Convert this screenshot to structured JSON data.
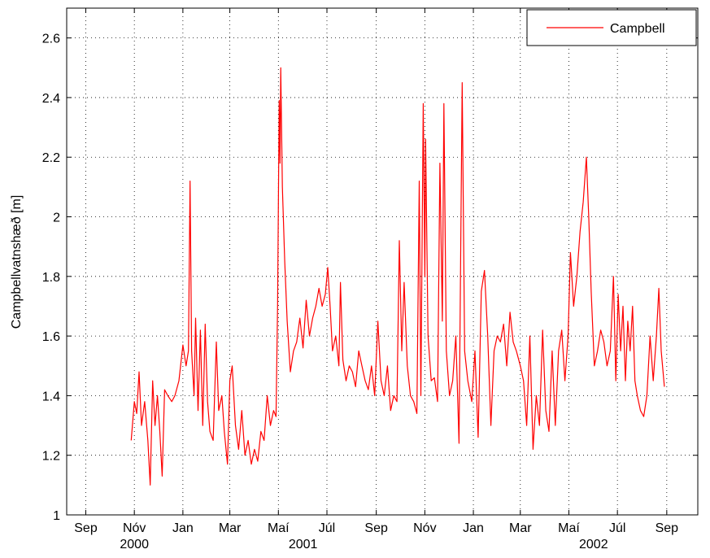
{
  "chart_data": {
    "type": "line",
    "ylabel": "Campbellvatnshæð [m]",
    "series": [
      {
        "name": "Campbell",
        "color": "#ff0000",
        "x": [
          "2000-10-28",
          "2000-11-01",
          "2000-11-04",
          "2000-11-07",
          "2000-11-10",
          "2000-11-14",
          "2000-11-18",
          "2000-11-21",
          "2000-11-24",
          "2000-11-27",
          "2000-11-30",
          "2000-12-03",
          "2000-12-06",
          "2000-12-09",
          "2000-12-13",
          "2000-12-18",
          "2000-12-22",
          "2000-12-27",
          "2001-01-01",
          "2001-01-05",
          "2001-01-08",
          "2001-01-10",
          "2001-01-12",
          "2001-01-15",
          "2001-01-17",
          "2001-01-20",
          "2001-01-23",
          "2001-01-26",
          "2001-01-29",
          "2001-02-01",
          "2001-02-04",
          "2001-02-08",
          "2001-02-12",
          "2001-02-15",
          "2001-02-19",
          "2001-02-22",
          "2001-02-26",
          "2001-03-01",
          "2001-03-04",
          "2001-03-08",
          "2001-03-12",
          "2001-03-16",
          "2001-03-20",
          "2001-03-24",
          "2001-03-28",
          "2001-04-01",
          "2001-04-05",
          "2001-04-09",
          "2001-04-13",
          "2001-04-17",
          "2001-04-21",
          "2001-04-25",
          "2001-04-28",
          "2001-04-30",
          "2001-05-02",
          "2001-05-03",
          "2001-05-04",
          "2001-05-06",
          "2001-05-09",
          "2001-05-12",
          "2001-05-16",
          "2001-05-20",
          "2001-05-24",
          "2001-05-28",
          "2001-06-01",
          "2001-06-05",
          "2001-06-09",
          "2001-06-13",
          "2001-06-17",
          "2001-06-21",
          "2001-06-25",
          "2001-06-29",
          "2001-07-02",
          "2001-07-05",
          "2001-07-08",
          "2001-07-12",
          "2001-07-16",
          "2001-07-18",
          "2001-07-21",
          "2001-07-25",
          "2001-07-29",
          "2001-08-02",
          "2001-08-06",
          "2001-08-10",
          "2001-08-14",
          "2001-08-18",
          "2001-08-22",
          "2001-08-26",
          "2001-08-30",
          "2001-09-03",
          "2001-09-07",
          "2001-09-11",
          "2001-09-15",
          "2001-09-19",
          "2001-09-23",
          "2001-09-27",
          "2001-09-30",
          "2001-10-03",
          "2001-10-06",
          "2001-10-10",
          "2001-10-14",
          "2001-10-18",
          "2001-10-22",
          "2001-10-25",
          "2001-10-27",
          "2001-10-30",
          "2001-11-01",
          "2001-11-02",
          "2001-11-05",
          "2001-11-09",
          "2001-11-13",
          "2001-11-17",
          "2001-11-20",
          "2001-11-23",
          "2001-11-25",
          "2001-11-28",
          "2001-12-02",
          "2001-12-06",
          "2001-12-10",
          "2001-12-14",
          "2001-12-18",
          "2001-12-21",
          "2001-12-25",
          "2001-12-30",
          "2002-01-03",
          "2002-01-07",
          "2002-01-11",
          "2002-01-15",
          "2002-01-19",
          "2002-01-23",
          "2002-01-27",
          "2002-01-31",
          "2002-02-04",
          "2002-02-08",
          "2002-02-12",
          "2002-02-16",
          "2002-02-20",
          "2002-02-24",
          "2002-03-01",
          "2002-03-05",
          "2002-03-09",
          "2002-03-13",
          "2002-03-17",
          "2002-03-21",
          "2002-03-25",
          "2002-03-29",
          "2002-04-02",
          "2002-04-06",
          "2002-04-10",
          "2002-04-14",
          "2002-04-18",
          "2002-04-22",
          "2002-04-26",
          "2002-04-30",
          "2002-05-03",
          "2002-05-07",
          "2002-05-11",
          "2002-05-15",
          "2002-05-19",
          "2002-05-23",
          "2002-05-26",
          "2002-05-29",
          "2002-06-02",
          "2002-06-06",
          "2002-06-10",
          "2002-06-14",
          "2002-06-18",
          "2002-06-22",
          "2002-06-26",
          "2002-06-29",
          "2002-07-02",
          "2002-07-05",
          "2002-07-08",
          "2002-07-11",
          "2002-07-14",
          "2002-07-17",
          "2002-07-20",
          "2002-07-23",
          "2002-07-26",
          "2002-07-30",
          "2002-08-03",
          "2002-08-07",
          "2002-08-11",
          "2002-08-15",
          "2002-08-19",
          "2002-08-22",
          "2002-08-25",
          "2002-08-29"
        ],
        "values": [
          1.25,
          1.38,
          1.34,
          1.48,
          1.3,
          1.38,
          1.25,
          1.1,
          1.45,
          1.3,
          1.4,
          1.28,
          1.13,
          1.42,
          1.4,
          1.38,
          1.4,
          1.45,
          1.57,
          1.5,
          1.55,
          2.12,
          1.55,
          1.4,
          1.66,
          1.35,
          1.62,
          1.3,
          1.64,
          1.38,
          1.28,
          1.25,
          1.58,
          1.35,
          1.4,
          1.28,
          1.17,
          1.45,
          1.5,
          1.3,
          1.22,
          1.35,
          1.2,
          1.25,
          1.17,
          1.22,
          1.18,
          1.28,
          1.25,
          1.4,
          1.3,
          1.35,
          1.33,
          1.7,
          2.39,
          2.18,
          2.5,
          2.1,
          1.85,
          1.65,
          1.48,
          1.55,
          1.58,
          1.66,
          1.56,
          1.72,
          1.6,
          1.66,
          1.7,
          1.76,
          1.7,
          1.74,
          1.83,
          1.7,
          1.55,
          1.6,
          1.5,
          1.78,
          1.52,
          1.45,
          1.5,
          1.48,
          1.43,
          1.55,
          1.5,
          1.45,
          1.42,
          1.5,
          1.4,
          1.65,
          1.45,
          1.4,
          1.5,
          1.35,
          1.4,
          1.38,
          1.92,
          1.55,
          1.78,
          1.5,
          1.4,
          1.38,
          1.34,
          2.12,
          1.4,
          2.38,
          1.8,
          2.26,
          1.6,
          1.45,
          1.46,
          1.38,
          2.18,
          1.65,
          2.38,
          1.55,
          1.4,
          1.45,
          1.6,
          1.24,
          2.45,
          1.55,
          1.45,
          1.38,
          1.55,
          1.26,
          1.75,
          1.82,
          1.6,
          1.3,
          1.55,
          1.6,
          1.58,
          1.64,
          1.5,
          1.68,
          1.58,
          1.55,
          1.5,
          1.45,
          1.3,
          1.6,
          1.22,
          1.4,
          1.3,
          1.62,
          1.35,
          1.28,
          1.55,
          1.3,
          1.55,
          1.62,
          1.45,
          1.6,
          1.88,
          1.7,
          1.8,
          1.95,
          2.05,
          2.2,
          2.0,
          1.75,
          1.5,
          1.55,
          1.62,
          1.58,
          1.5,
          1.55,
          1.8,
          1.45,
          1.74,
          1.55,
          1.7,
          1.45,
          1.65,
          1.55,
          1.7,
          1.45,
          1.4,
          1.35,
          1.33,
          1.4,
          1.6,
          1.45,
          1.6,
          1.76,
          1.55,
          1.43
        ]
      }
    ],
    "xlim": [
      "2000-08-08",
      "2002-10-10"
    ],
    "xticks": [
      {
        "value": "2000-09",
        "label": "Sep"
      },
      {
        "value": "2000-11",
        "label": "Nóv"
      },
      {
        "value": "2001-01",
        "label": "Jan"
      },
      {
        "value": "2001-03",
        "label": "Mar"
      },
      {
        "value": "2001-05",
        "label": "Maí"
      },
      {
        "value": "2001-07",
        "label": "Júl"
      },
      {
        "value": "2001-09",
        "label": "Sep"
      },
      {
        "value": "2001-11",
        "label": "Nóv"
      },
      {
        "value": "2002-01",
        "label": "Jan"
      },
      {
        "value": "2002-03",
        "label": "Mar"
      },
      {
        "value": "2002-05",
        "label": "Maí"
      },
      {
        "value": "2002-07",
        "label": "Júl"
      },
      {
        "value": "2002-09",
        "label": "Sep"
      }
    ],
    "year_labels": [
      {
        "value": "2000-11",
        "label": "2000"
      },
      {
        "value": "2001-06",
        "label": "2001"
      },
      {
        "value": "2002-06",
        "label": "2002"
      }
    ],
    "ylim": [
      1,
      2.7
    ],
    "yticks": [
      1,
      1.2,
      1.4,
      1.6,
      1.8,
      2,
      2.2,
      2.4,
      2.6
    ],
    "grid": true,
    "legend": "top-right"
  }
}
